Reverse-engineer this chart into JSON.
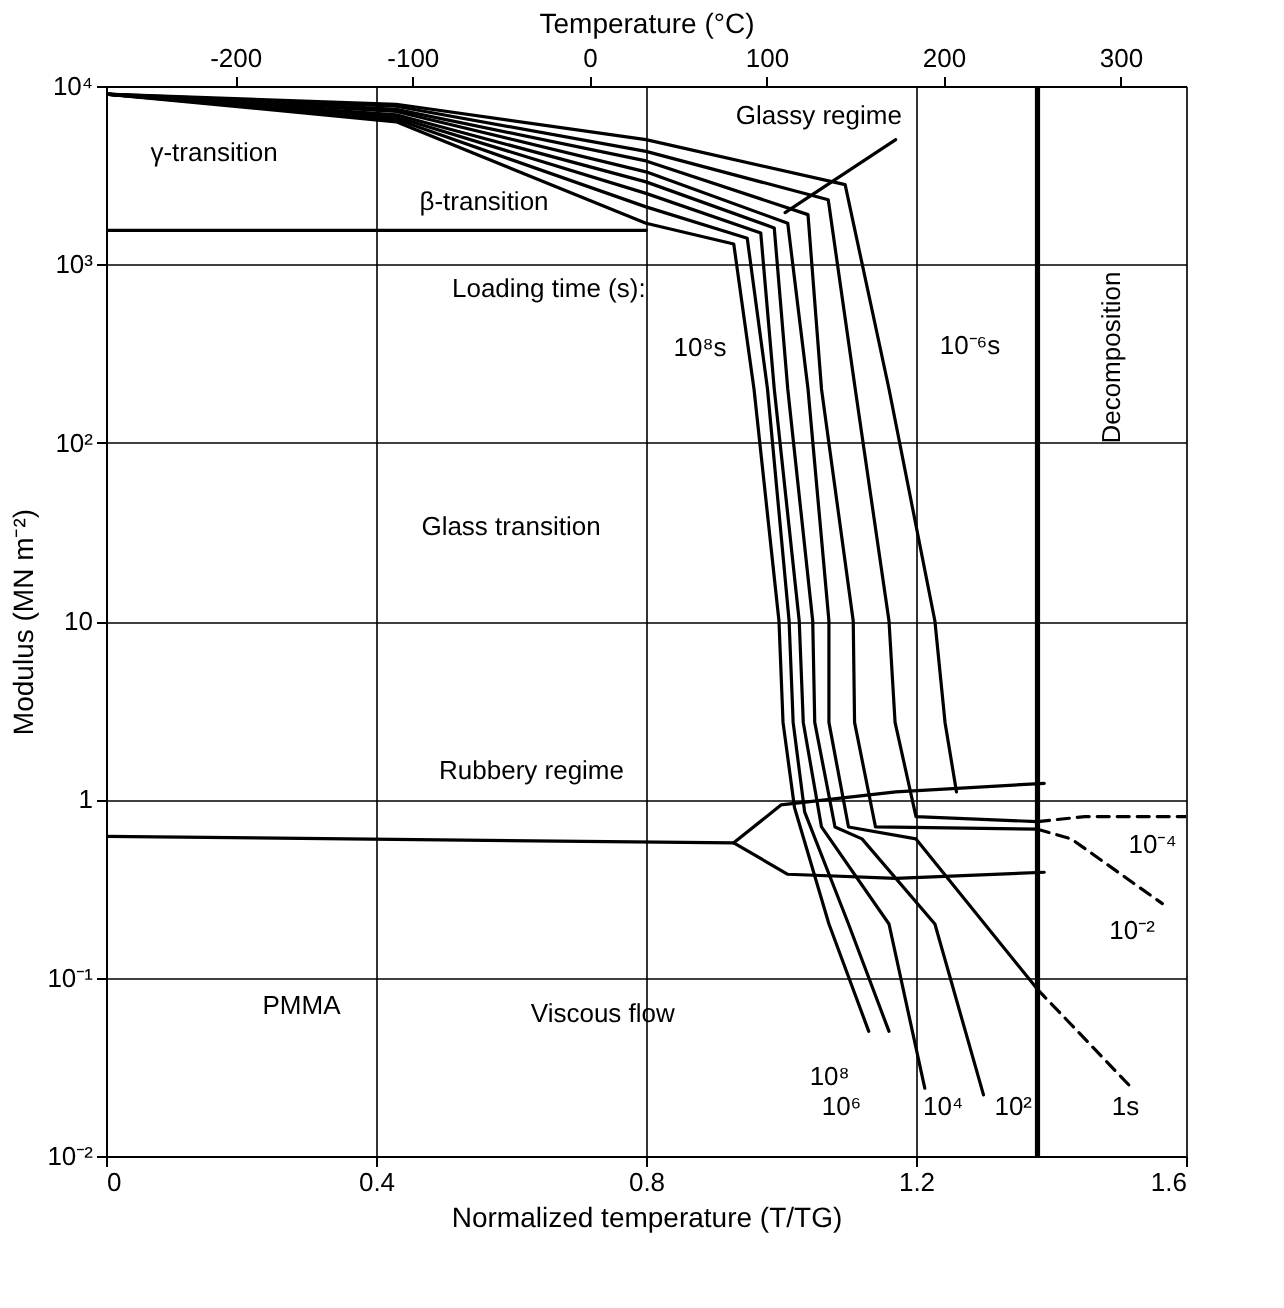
{
  "chart_data": {
    "type": "line",
    "xlabel": "Normalized temperature (T/TG)",
    "ylabel": "Modulus (MN m⁻²)",
    "x2label": "Temperature (°C)",
    "xlim": [
      0,
      1.6
    ],
    "xticks": [
      0,
      0.4,
      0.8,
      1.2,
      1.6
    ],
    "x2lim": [
      -273,
      337
    ],
    "x2ticks": [
      -200,
      -100,
      0,
      100,
      200,
      300
    ],
    "ylim": [
      0.01,
      10000
    ],
    "yticks": [
      {
        "value": 0.01,
        "label": "10⁻²"
      },
      {
        "value": 0.1,
        "label": "10⁻¹"
      },
      1,
      10,
      {
        "value": 100,
        "label": "10²"
      },
      {
        "value": 1000,
        "label": "10³"
      },
      {
        "value": 10000,
        "label": "10⁴"
      }
    ],
    "log": "y",
    "grid": true,
    "line_style": "solid",
    "marker": "none",
    "series": [
      {
        "color": "#000000",
        "x": [
          0,
          0.43,
          0.8,
          0.93,
          0.96,
          0.997,
          1.003,
          1.02,
          1.071,
          1.13
        ],
        "values": [
          9000,
          6300,
          1700,
          1300,
          200,
          10,
          2.7,
          0.9,
          0.2,
          0.05
        ]
      },
      {
        "color": "#000000",
        "x": [
          0,
          0.43,
          0.8,
          0.95,
          0.98,
          1.012,
          1.018,
          1.035,
          1.1,
          1.16
        ],
        "values": [
          9000,
          6500,
          2100,
          1400,
          200,
          10,
          2.7,
          0.85,
          0.2,
          0.05
        ]
      },
      {
        "color": "#000000",
        "x": [
          0,
          0.43,
          0.8,
          0.97,
          0.99,
          1.027,
          1.033,
          1.06,
          1.16,
          1.213
        ],
        "values": [
          9000,
          6700,
          2500,
          1500,
          200,
          10,
          2.7,
          0.7,
          0.2,
          0.024
        ]
      },
      {
        "color": "#000000",
        "x": [
          0,
          0.43,
          0.8,
          0.99,
          1.01,
          1.047,
          1.05,
          1.08,
          1.12,
          1.228,
          1.3
        ],
        "values": [
          9000,
          6900,
          2900,
          1600,
          200,
          10,
          2.7,
          0.7,
          0.6,
          0.2,
          0.022
        ]
      },
      {
        "color": "#000000",
        "x": [
          0,
          0.43,
          0.8,
          1.01,
          1.04,
          1.071,
          1.071,
          1.1,
          1.2,
          1.38
        ],
        "values": [
          9000,
          7200,
          3300,
          1700,
          200,
          10,
          2.7,
          0.7,
          0.6,
          0.086
        ]
      },
      {
        "color": "#000000",
        "x": [
          0,
          0.43,
          0.8,
          1.04,
          1.06,
          1.107,
          1.109,
          1.14,
          1.38
        ],
        "values": [
          9000,
          7400,
          3800,
          1900,
          200,
          10,
          2.7,
          0.7,
          0.68
        ]
      },
      {
        "color": "#000000",
        "x": [
          0,
          0.43,
          0.8,
          1.07,
          1.11,
          1.16,
          1.169,
          1.2,
          1.38
        ],
        "values": [
          9000,
          7700,
          4300,
          2300,
          200,
          10,
          2.7,
          0.8,
          0.75
        ]
      },
      {
        "color": "#000000",
        "x": [
          0,
          0.43,
          0.8,
          1.095,
          1.16,
          1.228,
          1.243,
          1.26
        ],
        "values": [
          9000,
          7900,
          5000,
          2800,
          200,
          10,
          2.7,
          1.1
        ]
      },
      {
        "color": "#000000",
        "x": [
          0.93,
          1.0,
          1.17,
          1.39
        ],
        "values": [
          0.57,
          0.93,
          1.1,
          1.23
        ]
      },
      {
        "color": "#000000",
        "x": [
          0.93,
          1.01,
          1.17,
          1.39
        ],
        "values": [
          0.57,
          0.38,
          0.36,
          0.39
        ]
      },
      {
        "color": "#000000",
        "x": [
          0,
          0.93
        ],
        "values": [
          0.62,
          0.57
        ]
      },
      {
        "color": "#000000",
        "x": [
          0,
          0.8
        ],
        "values": [
          1550,
          1550
        ]
      },
      {
        "color": "#000000",
        "x": [
          1.006,
          1.17
        ],
        "values": [
          1950,
          5000
        ]
      },
      {
        "color": "#000000",
        "line_style": "dashed",
        "x": [
          1.38,
          1.52
        ],
        "values": [
          0.086,
          0.024
        ]
      },
      {
        "color": "#000000",
        "line_style": "dashed",
        "x": [
          1.38,
          1.43,
          1.565
        ],
        "values": [
          0.68,
          0.6,
          0.26
        ]
      },
      {
        "color": "#000000",
        "line_style": "dashed",
        "x": [
          1.38,
          1.45,
          1.6
        ],
        "values": [
          0.75,
          0.8,
          0.8
        ]
      }
    ],
    "ref_lines": [
      {
        "axis": "x",
        "value": 1.38,
        "label": "Decomposition",
        "color": "#000000"
      }
    ],
    "annotations": [
      "γ-transition",
      "β-transition",
      "Glassy regime",
      "Loading time (s):",
      "10⁸s",
      "10⁻⁶s",
      "Glass transition",
      "Rubbery regime",
      "Viscous flow",
      "10⁸",
      "10⁶",
      "10⁴",
      "10²",
      "1s",
      "10⁻²",
      "10⁻⁴",
      "PMMA"
    ]
  }
}
